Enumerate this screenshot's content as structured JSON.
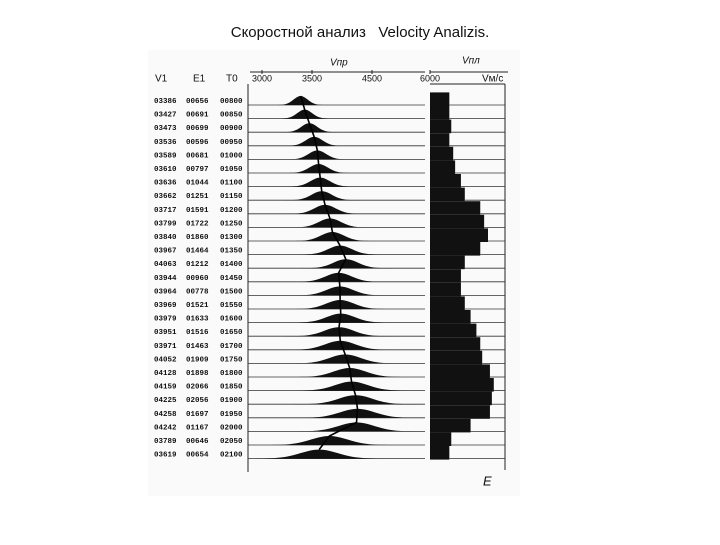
{
  "title": "Скоростной анализ   Velocity Analizis.",
  "chart_data": {
    "type": "velocity_analysis",
    "columns": [
      "V1",
      "E1",
      "T0"
    ],
    "axis_labels": {
      "stack": "Vпр",
      "interval": "Vпл",
      "unit": "Vм/с"
    },
    "xticks": [
      3000,
      3500,
      4500,
      6000
    ],
    "rows": [
      [
        {
          "value": 3386,
          "label": "03386"
        },
        "00656",
        "00800"
      ],
      [
        {
          "value": 3427,
          "label": "03427"
        },
        "00691",
        "00850"
      ],
      [
        {
          "value": 3473,
          "label": "03473"
        },
        "00699",
        "00900"
      ],
      [
        {
          "value": 3536,
          "label": "03536"
        },
        "00596",
        "00950"
      ],
      [
        {
          "value": 3589,
          "label": "03589"
        },
        "00681",
        "01000"
      ],
      [
        {
          "value": 3610,
          "label": "03610"
        },
        "00797",
        "01050"
      ],
      [
        {
          "value": 3636,
          "label": "03636"
        },
        "01044",
        "01100"
      ],
      [
        {
          "value": 3662,
          "label": "03662"
        },
        "01251",
        "01150"
      ],
      [
        {
          "value": 3717,
          "label": "03717"
        },
        "01591",
        "01200"
      ],
      [
        {
          "value": 3799,
          "label": "03799"
        },
        "01722",
        "01250"
      ],
      [
        {
          "value": 3840,
          "label": "03840"
        },
        "01860",
        "01300"
      ],
      [
        {
          "value": 3967,
          "label": "03967"
        },
        "01464",
        "01350"
      ],
      [
        {
          "value": 4063,
          "label": "04063"
        },
        "01212",
        "01400"
      ],
      [
        {
          "value": 3944,
          "label": "03944"
        },
        "00960",
        "01450"
      ],
      [
        {
          "value": 3964,
          "label": "03964"
        },
        "00778",
        "01500"
      ],
      [
        {
          "value": 3969,
          "label": "03969"
        },
        "01521",
        "01550"
      ],
      [
        {
          "value": 3979,
          "label": "03979"
        },
        "01633",
        "01600"
      ],
      [
        {
          "value": 3951,
          "label": "03951"
        },
        "01516",
        "01650"
      ],
      [
        {
          "value": 3971,
          "label": "03971"
        },
        "01463",
        "01700"
      ],
      [
        {
          "value": 4052,
          "label": "04052"
        },
        "01909",
        "01750"
      ],
      [
        {
          "value": 4128,
          "label": "04128"
        },
        "01898",
        "01800"
      ],
      [
        {
          "value": 4159,
          "label": "04159"
        },
        "02066",
        "01850"
      ],
      [
        {
          "value": 4225,
          "label": "04225"
        },
        "02056",
        "01900"
      ],
      [
        {
          "value": 4258,
          "label": "04258"
        },
        "01697",
        "01950"
      ],
      [
        {
          "value": 4242,
          "label": "04242"
        },
        "01167",
        "02000"
      ],
      [
        {
          "value": 3789,
          "label": "03789"
        },
        "00646",
        "02050"
      ],
      [
        {
          "value": 3619,
          "label": "03619"
        },
        "00654",
        "02100"
      ]
    ],
    "interval_velocity": [
      6500,
      6500,
      6550,
      6500,
      6600,
      6650,
      6800,
      6900,
      7300,
      7400,
      7500,
      7300,
      6900,
      6800,
      6800,
      6900,
      7050,
      7200,
      7300,
      7350,
      7550,
      7650,
      7600,
      7550,
      7050,
      6550,
      6500
    ],
    "note": "E"
  }
}
